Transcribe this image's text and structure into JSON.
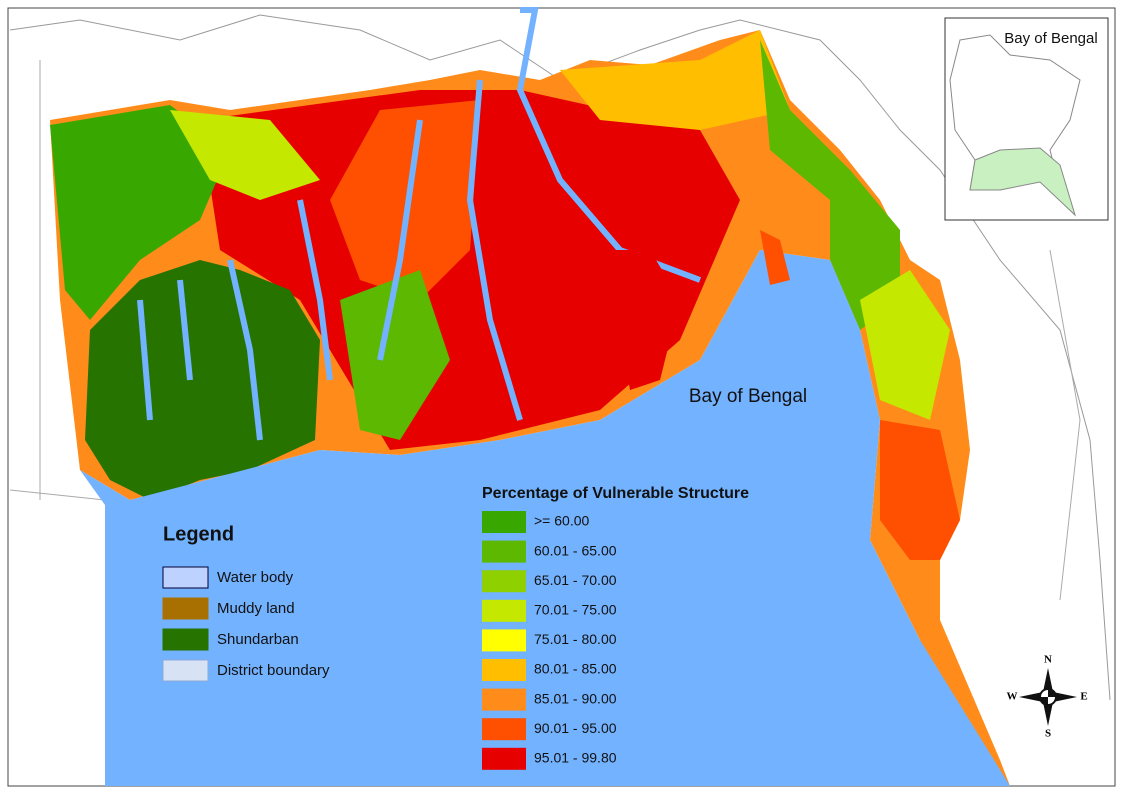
{
  "inset": {
    "label": "Bay of Bengal"
  },
  "map": {
    "sea_label": "Bay of Bengal"
  },
  "legend": {
    "title": "Legend",
    "items": [
      {
        "label": "Water body",
        "color": "#bed2ff"
      },
      {
        "label": "Muddy land",
        "color": "#a87000"
      },
      {
        "label": "Shundarban",
        "color": "#267300"
      },
      {
        "label": "District boundary",
        "color": "#d7e3f4"
      }
    ]
  },
  "classification": {
    "title": "Percentage of Vulnerable Structure",
    "classes": [
      {
        "label": ">= 60.00",
        "color": "#38a800"
      },
      {
        "label": "60.01 - 65.00",
        "color": "#5cb800"
      },
      {
        "label": "65.01 - 70.00",
        "color": "#8fd100"
      },
      {
        "label": "70.01 - 75.00",
        "color": "#c4e800"
      },
      {
        "label": "75.01 - 80.00",
        "color": "#ffff00"
      },
      {
        "label": "80.01 - 85.00",
        "color": "#ffbf00"
      },
      {
        "label": "85.01 - 90.00",
        "color": "#ff8c1a"
      },
      {
        "label": "90.01 - 95.00",
        "color": "#ff4f00"
      },
      {
        "label": "95.01 - 99.80",
        "color": "#e60000"
      }
    ]
  },
  "compass": {
    "north": "N",
    "east": "E",
    "south": "S",
    "west": "W"
  }
}
